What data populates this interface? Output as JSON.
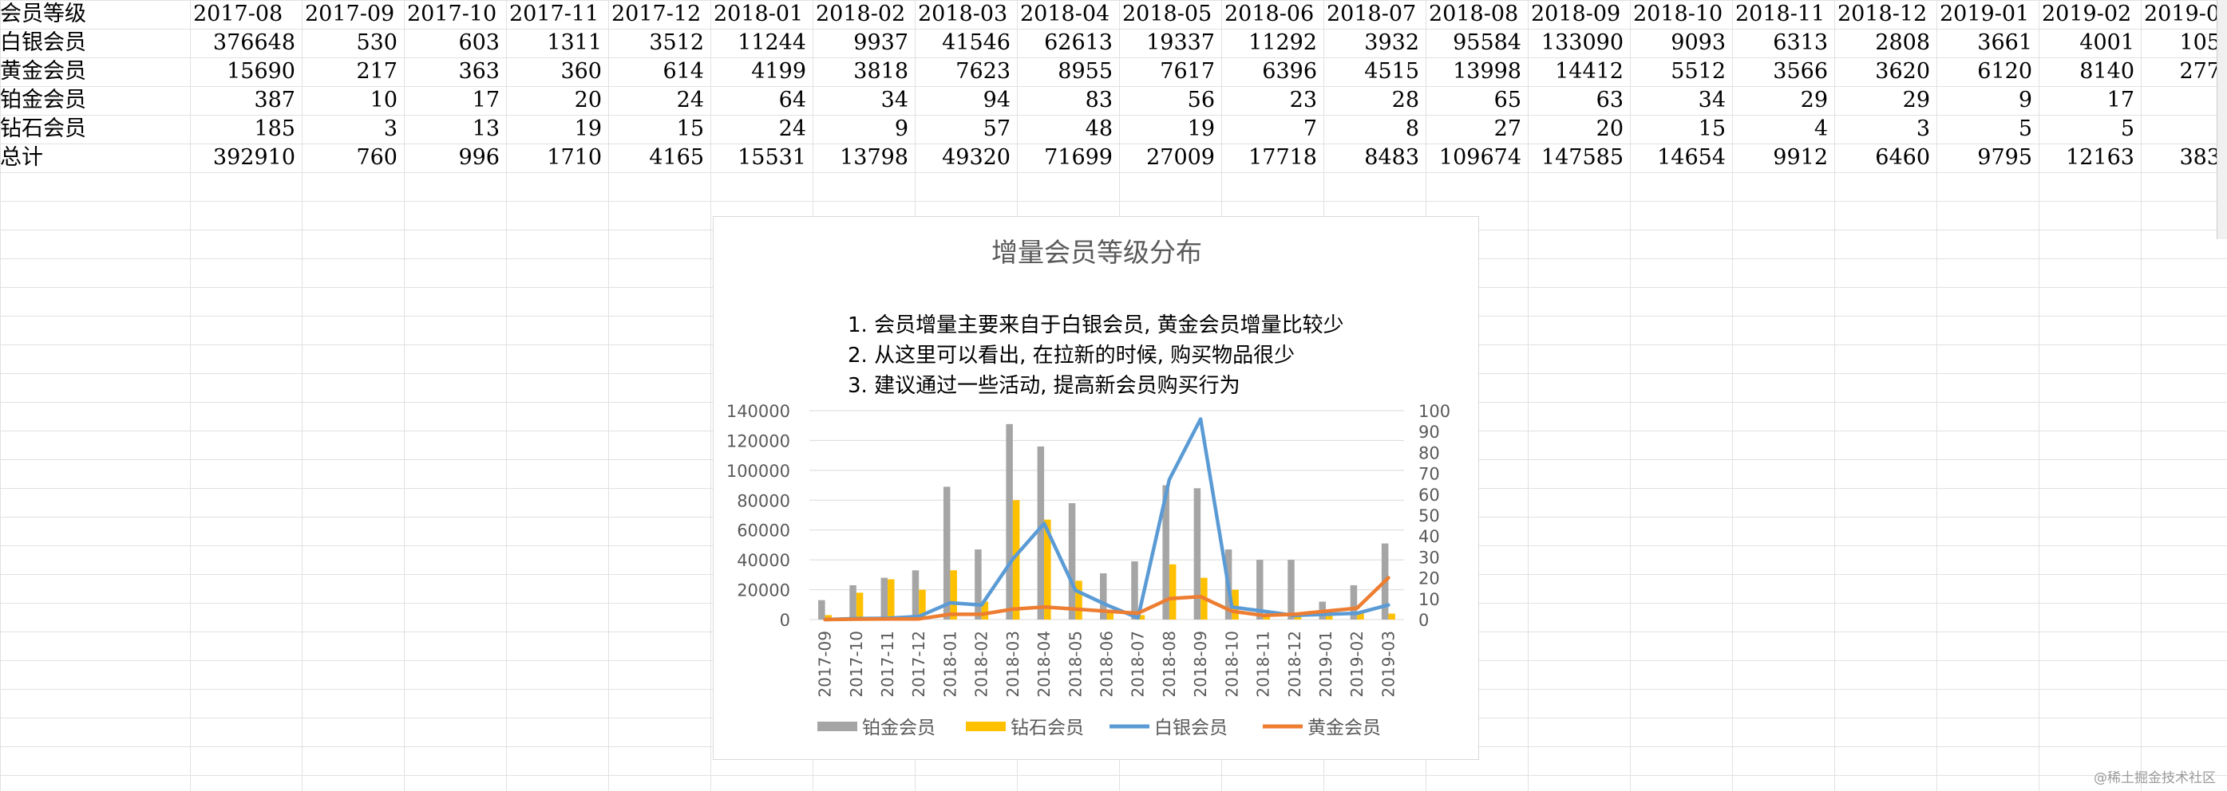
{
  "sheet": {
    "header": {
      "label": "会员等级",
      "months": [
        "2017-08",
        "2017-09",
        "2017-10",
        "2017-11",
        "2017-12",
        "2018-01",
        "2018-02",
        "2018-03",
        "2018-04",
        "2018-05",
        "2018-06",
        "2018-07",
        "2018-08",
        "2018-09",
        "2018-10",
        "2018-11",
        "2018-12",
        "2019-01",
        "2019-02",
        "2019-0"
      ]
    },
    "rows": [
      {
        "label": "白银会员",
        "values": [
          "376648",
          "530",
          "603",
          "1311",
          "3512",
          "11244",
          "9937",
          "41546",
          "62613",
          "19337",
          "11292",
          "3932",
          "95584",
          "133090",
          "9093",
          "6313",
          "2808",
          "3661",
          "4001",
          "105"
        ]
      },
      {
        "label": "黄金会员",
        "values": [
          "15690",
          "217",
          "363",
          "360",
          "614",
          "4199",
          "3818",
          "7623",
          "8955",
          "7617",
          "6396",
          "4515",
          "13998",
          "14412",
          "5512",
          "3566",
          "3620",
          "6120",
          "8140",
          "277"
        ]
      },
      {
        "label": "铂金会员",
        "values": [
          "387",
          "10",
          "17",
          "20",
          "24",
          "64",
          "34",
          "94",
          "83",
          "56",
          "23",
          "28",
          "65",
          "63",
          "34",
          "29",
          "29",
          "9",
          "17",
          ""
        ]
      },
      {
        "label": "钻石会员",
        "values": [
          "185",
          "3",
          "13",
          "19",
          "15",
          "24",
          "9",
          "57",
          "48",
          "19",
          "7",
          "8",
          "27",
          "20",
          "15",
          "4",
          "3",
          "5",
          "5",
          ""
        ]
      },
      {
        "label": "总计",
        "values": [
          "392910",
          "760",
          "996",
          "1710",
          "4165",
          "15531",
          "13798",
          "49320",
          "71699",
          "27009",
          "17718",
          "8483",
          "109674",
          "147585",
          "14654",
          "9912",
          "6460",
          "9795",
          "12163",
          "383"
        ]
      }
    ]
  },
  "chart_data": {
    "type": "bar",
    "title": "增量会员等级分布",
    "annotations": [
      "1. 会员增量主要来自于白银会员, 黄金会员增量比较少",
      "2. 从这里可以看出, 在拉新的时候, 购买物品很少",
      "3. 建议通过一些活动, 提高新会员购买行为"
    ],
    "categories": [
      "2017-09",
      "2017-10",
      "2017-11",
      "2017-12",
      "2018-01",
      "2018-02",
      "2018-03",
      "2018-04",
      "2018-05",
      "2018-06",
      "2018-07",
      "2018-08",
      "2018-09",
      "2018-10",
      "2018-11",
      "2018-12",
      "2019-01",
      "2019-02",
      "2019-03"
    ],
    "y_left": {
      "range": [
        0,
        140000
      ],
      "ticks": [
        "0",
        "20000",
        "40000",
        "60000",
        "80000",
        "100000",
        "120000",
        "140000"
      ]
    },
    "y_right": {
      "range": [
        0,
        100
      ],
      "ticks": [
        "0",
        "10",
        "20",
        "30",
        "40",
        "50",
        "60",
        "70",
        "80",
        "90",
        "100"
      ]
    },
    "series": [
      {
        "name": "铂金会员",
        "kind": "bar",
        "axis": "left",
        "color": "#a5a5a5",
        "values": [
          13000,
          23000,
          28000,
          33000,
          89000,
          47000,
          131000,
          116000,
          78000,
          31000,
          39000,
          90000,
          88000,
          47000,
          40000,
          40000,
          12000,
          23000,
          51000
        ]
      },
      {
        "name": "钻石会员",
        "kind": "bar",
        "axis": "left",
        "color": "#ffc000",
        "values": [
          3000,
          18000,
          27000,
          20000,
          33000,
          12000,
          80000,
          67000,
          26000,
          5000,
          3000,
          37000,
          28000,
          20000,
          3000,
          2000,
          5000,
          5000,
          4000
        ]
      },
      {
        "name": "白银会员",
        "kind": "line",
        "axis": "right",
        "color": "#5b9bd5",
        "values": [
          0,
          0.5,
          0.6,
          1.5,
          8,
          7,
          29,
          46,
          14,
          7,
          0.8,
          67,
          96,
          6,
          4,
          2,
          2.5,
          3,
          7
        ]
      },
      {
        "name": "黄金会员",
        "kind": "line",
        "axis": "right",
        "color": "#ed7d31",
        "values": [
          0,
          0.2,
          0.3,
          0.3,
          2.5,
          2.5,
          5,
          6,
          5,
          4,
          3,
          10,
          11,
          4,
          2,
          2.5,
          4,
          5.5,
          20
        ]
      }
    ],
    "legend_position": "bottom",
    "grid": true
  },
  "watermark": "@稀土掘金技术社区"
}
